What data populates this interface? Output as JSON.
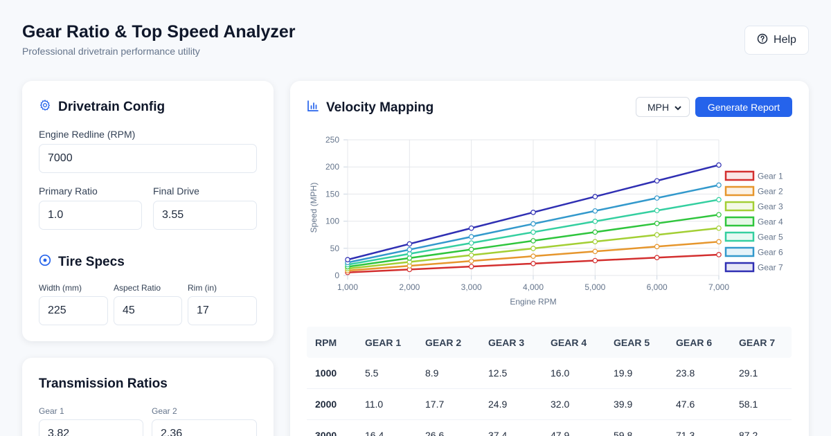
{
  "header": {
    "title": "Gear Ratio & Top Speed Analyzer",
    "subtitle": "Professional drivetrain performance utility",
    "help_label": "Help"
  },
  "drivetrain": {
    "title": "Drivetrain Config",
    "redline_label": "Engine Redline (RPM)",
    "redline_value": "7000",
    "primary_label": "Primary Ratio",
    "primary_value": "1.0",
    "final_label": "Final Drive",
    "final_value": "3.55"
  },
  "tire": {
    "title": "Tire Specs",
    "width_label": "Width (mm)",
    "width_value": "225",
    "aspect_label": "Aspect Ratio",
    "aspect_value": "45",
    "rim_label": "Rim (in)",
    "rim_value": "17"
  },
  "transmission": {
    "title": "Transmission Ratios",
    "gear1_label": "Gear 1",
    "gear1_value": "3.82",
    "gear2_label": "Gear 2",
    "gear2_value": "2.36"
  },
  "chart_panel": {
    "title": "Velocity Mapping",
    "unit_selected": "MPH",
    "report_label": "Generate Report"
  },
  "chart_data": {
    "type": "line",
    "xlabel": "Engine RPM",
    "ylabel": "Speed (MPH)",
    "x": [
      1000,
      2000,
      3000,
      4000,
      5000,
      6000,
      7000
    ],
    "x_tick_labels": [
      "1,000",
      "2,000",
      "3,000",
      "4,000",
      "5,000",
      "6,000",
      "7,000"
    ],
    "ylim": [
      0,
      250
    ],
    "y_ticks": [
      0,
      50,
      100,
      150,
      200,
      250
    ],
    "grid": true,
    "legend_position": "right",
    "series": [
      {
        "name": "Gear 1",
        "color": "#d32f2f",
        "values": [
          5.5,
          11.0,
          16.4,
          21.9,
          27.4,
          32.9,
          38.3
        ]
      },
      {
        "name": "Gear 2",
        "color": "#e6962d",
        "values": [
          8.9,
          17.7,
          26.6,
          35.5,
          44.3,
          53.2,
          62.1
        ]
      },
      {
        "name": "Gear 3",
        "color": "#a3cf34",
        "values": [
          12.5,
          24.9,
          37.4,
          49.8,
          62.3,
          74.8,
          87.2
        ]
      },
      {
        "name": "Gear 4",
        "color": "#2fc53d",
        "values": [
          16.0,
          32.0,
          47.9,
          63.9,
          79.9,
          95.9,
          111.9
        ]
      },
      {
        "name": "Gear 5",
        "color": "#34cfa0",
        "values": [
          19.9,
          39.9,
          59.8,
          79.8,
          99.7,
          119.6,
          139.6
        ]
      },
      {
        "name": "Gear 6",
        "color": "#3399cc",
        "values": [
          23.8,
          47.6,
          71.3,
          95.1,
          118.9,
          142.7,
          166.5
        ]
      },
      {
        "name": "Gear 7",
        "color": "#2f2fb3",
        "values": [
          29.1,
          58.1,
          87.2,
          116.3,
          145.3,
          174.4,
          203.5
        ]
      }
    ]
  },
  "table": {
    "headers": [
      "RPM",
      "GEAR 1",
      "GEAR 2",
      "GEAR 3",
      "GEAR 4",
      "GEAR 5",
      "GEAR 6",
      "GEAR 7"
    ],
    "rows": [
      [
        "1000",
        "5.5",
        "8.9",
        "12.5",
        "16.0",
        "19.9",
        "23.8",
        "29.1"
      ],
      [
        "2000",
        "11.0",
        "17.7",
        "24.9",
        "32.0",
        "39.9",
        "47.6",
        "58.1"
      ],
      [
        "3000",
        "16.4",
        "26.6",
        "37.4",
        "47.9",
        "59.8",
        "71.3",
        "87.2"
      ]
    ]
  }
}
